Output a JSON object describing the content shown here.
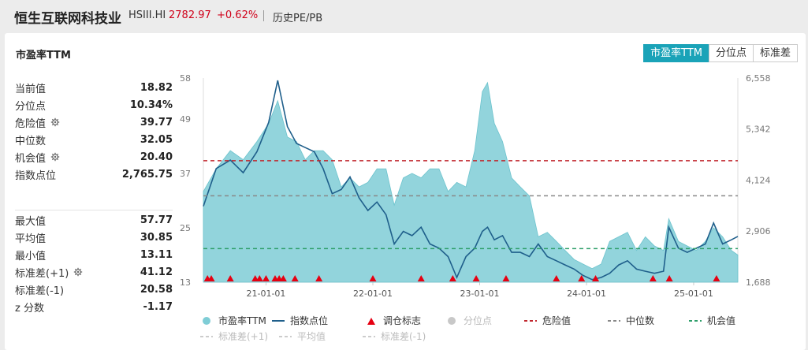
{
  "header": {
    "name": "恒生互联网科技业",
    "code": "HSIII.HI",
    "price": "2782.97",
    "change": "+0.62%",
    "history_label": "历史PE/PB"
  },
  "card": {
    "title": "市盈率TTM",
    "tabs": [
      {
        "label": "市盈率TTM",
        "active": true
      },
      {
        "label": "分位点",
        "active": false
      },
      {
        "label": "标准差",
        "active": false
      }
    ]
  },
  "stats_top": [
    {
      "label": "当前值",
      "value": "18.82",
      "gear": false
    },
    {
      "label": "分位点",
      "value": "10.34%",
      "gear": false
    },
    {
      "label": "危险值",
      "value": "39.77",
      "gear": true
    },
    {
      "label": "中位数",
      "value": "32.05",
      "gear": false
    },
    {
      "label": "机会值",
      "value": "20.40",
      "gear": true
    },
    {
      "label": "指数点位",
      "value": "2,765.75",
      "gear": false
    }
  ],
  "stats_bottom": [
    {
      "label": "最大值",
      "value": "57.77",
      "gear": false
    },
    {
      "label": "平均值",
      "value": "30.85",
      "gear": false
    },
    {
      "label": "最小值",
      "value": "13.11",
      "gear": false
    },
    {
      "label": "标准差(+1)",
      "value": "41.12",
      "gear": true
    },
    {
      "label": "标准差(-1)",
      "value": "20.58",
      "gear": false
    },
    {
      "label": "z 分数",
      "value": "-1.17",
      "gear": false
    }
  ],
  "legend": [
    {
      "label": "市盈率TTM",
      "symbol": "dot",
      "color": "#7fcdd6",
      "dim": false
    },
    {
      "label": "指数点位",
      "symbol": "line",
      "color": "#1f5f8b",
      "dim": false
    },
    {
      "label": "调仓标志",
      "symbol": "triangle",
      "color": "#e60012",
      "dim": false
    },
    {
      "label": "分位点",
      "symbol": "dot",
      "color": "#c8c8c8",
      "dim": true
    },
    {
      "label": "危险值",
      "symbol": "dash",
      "color": "#c0262d",
      "dim": false
    },
    {
      "label": "中位数",
      "symbol": "dash",
      "color": "#888888",
      "dim": false
    },
    {
      "label": "机会值",
      "symbol": "dash",
      "color": "#2e9e6a",
      "dim": false
    },
    {
      "label": "标准差(+1)",
      "symbol": "dash",
      "color": "#cccccc",
      "dim": true
    },
    {
      "label": "平均值",
      "symbol": "dash",
      "color": "#cccccc",
      "dim": true
    },
    {
      "label": "标准差(-1)",
      "symbol": "dash",
      "color": "#cccccc",
      "dim": true
    }
  ],
  "chart_data": {
    "type": "area",
    "title": "",
    "x_ticks": [
      "21-01-01",
      "22-01-01",
      "23-01-01",
      "24-01-01",
      "25-01-01"
    ],
    "x_range": [
      "2020-06-01",
      "2025-06-01"
    ],
    "y_left": {
      "ticks": [
        "13",
        "25",
        "37",
        "49",
        "58"
      ],
      "range": [
        13,
        58
      ]
    },
    "y_right": {
      "ticks": [
        "1,688",
        "2,906",
        "4,124",
        "5,342",
        "6,558"
      ],
      "range": [
        1688,
        6558
      ]
    },
    "thresholds": {
      "danger": 39.77,
      "median": 32.05,
      "opportunity": 20.4
    },
    "series": [
      {
        "name": "市盈率TTM",
        "axis": "left",
        "color": "#7fcdd6",
        "x": [
          "2020-06-01",
          "2020-07-15",
          "2020-09-01",
          "2020-10-15",
          "2020-12-01",
          "2021-01-10",
          "2021-02-10",
          "2021-03-15",
          "2021-04-15",
          "2021-05-15",
          "2021-06-15",
          "2021-07-15",
          "2021-08-15",
          "2021-09-15",
          "2021-10-15",
          "2021-11-15",
          "2021-12-15",
          "2022-01-15",
          "2022-02-15",
          "2022-03-15",
          "2022-04-15",
          "2022-05-15",
          "2022-06-15",
          "2022-07-15",
          "2022-08-15",
          "2022-09-15",
          "2022-10-15",
          "2022-11-15",
          "2022-12-15",
          "2023-01-10",
          "2023-01-28",
          "2023-02-20",
          "2023-03-20",
          "2023-04-20",
          "2023-05-20",
          "2023-06-20",
          "2023-07-20",
          "2023-08-20",
          "2023-09-20",
          "2023-10-20",
          "2023-11-20",
          "2023-12-20",
          "2024-01-20",
          "2024-02-20",
          "2024-03-20",
          "2024-04-20",
          "2024-05-20",
          "2024-06-20",
          "2024-07-20",
          "2024-08-20",
          "2024-09-20",
          "2024-10-08",
          "2024-11-10",
          "2024-12-10",
          "2025-01-10",
          "2025-02-10",
          "2025-03-10",
          "2025-04-10",
          "2025-05-10",
          "2025-06-01"
        ],
        "values": [
          33,
          38,
          42,
          40,
          44,
          48,
          53,
          45,
          44,
          40,
          42,
          42,
          40,
          34,
          36,
          34,
          35,
          38,
          38,
          30,
          36,
          37,
          36,
          38,
          38,
          33,
          35,
          34,
          42,
          55,
          57,
          48,
          44,
          36,
          34,
          32,
          23,
          24,
          22,
          20,
          18,
          17,
          16,
          17,
          22,
          23,
          24,
          20,
          23,
          21,
          20,
          27,
          22,
          21,
          20,
          22,
          25,
          23,
          20,
          19
        ]
      },
      {
        "name": "指数点位",
        "axis": "right",
        "color": "#1f5f8b",
        "x": [
          "2020-06-01",
          "2020-07-15",
          "2020-09-01",
          "2020-10-15",
          "2020-12-01",
          "2021-01-10",
          "2021-02-10",
          "2021-03-15",
          "2021-04-15",
          "2021-05-15",
          "2021-06-15",
          "2021-07-15",
          "2021-08-15",
          "2021-09-15",
          "2021-10-15",
          "2021-11-15",
          "2021-12-15",
          "2022-01-15",
          "2022-02-15",
          "2022-03-15",
          "2022-04-15",
          "2022-05-15",
          "2022-06-15",
          "2022-07-15",
          "2022-08-15",
          "2022-09-15",
          "2022-10-15",
          "2022-11-15",
          "2022-12-15",
          "2023-01-10",
          "2023-01-28",
          "2023-02-20",
          "2023-03-20",
          "2023-04-20",
          "2023-05-20",
          "2023-06-20",
          "2023-07-20",
          "2023-08-20",
          "2023-09-20",
          "2023-10-20",
          "2023-11-20",
          "2023-12-20",
          "2024-01-20",
          "2024-02-20",
          "2024-03-20",
          "2024-04-20",
          "2024-05-20",
          "2024-06-20",
          "2024-07-20",
          "2024-08-20",
          "2024-09-20",
          "2024-10-08",
          "2024-11-10",
          "2024-12-10",
          "2025-01-10",
          "2025-02-10",
          "2025-03-10",
          "2025-04-10",
          "2025-05-10",
          "2025-06-01"
        ],
        "values": [
          3500,
          4400,
          4600,
          4300,
          4800,
          5500,
          6500,
          5400,
          5000,
          4900,
          4800,
          4400,
          3800,
          3900,
          4200,
          3700,
          3400,
          3600,
          3300,
          2600,
          2900,
          2800,
          3000,
          2600,
          2500,
          2300,
          1800,
          2300,
          2500,
          2900,
          3000,
          2700,
          2800,
          2400,
          2400,
          2300,
          2600,
          2300,
          2200,
          2100,
          2000,
          1850,
          1750,
          1800,
          1900,
          2100,
          2200,
          2000,
          1950,
          1900,
          1950,
          3000,
          2500,
          2400,
          2500,
          2600,
          3100,
          2600,
          2700,
          2780
        ]
      }
    ],
    "rebalance_markers": [
      "2020-06-15",
      "2020-06-28",
      "2020-09-01",
      "2020-11-25",
      "2020-12-10",
      "2021-01-01",
      "2021-02-01",
      "2021-02-15",
      "2021-03-01",
      "2021-04-10",
      "2021-07-01",
      "2022-01-01",
      "2022-06-15",
      "2022-10-01",
      "2022-12-20",
      "2023-04-01",
      "2023-09-20",
      "2023-12-15",
      "2024-02-01",
      "2024-08-15",
      "2024-10-10",
      "2025-03-20"
    ]
  }
}
